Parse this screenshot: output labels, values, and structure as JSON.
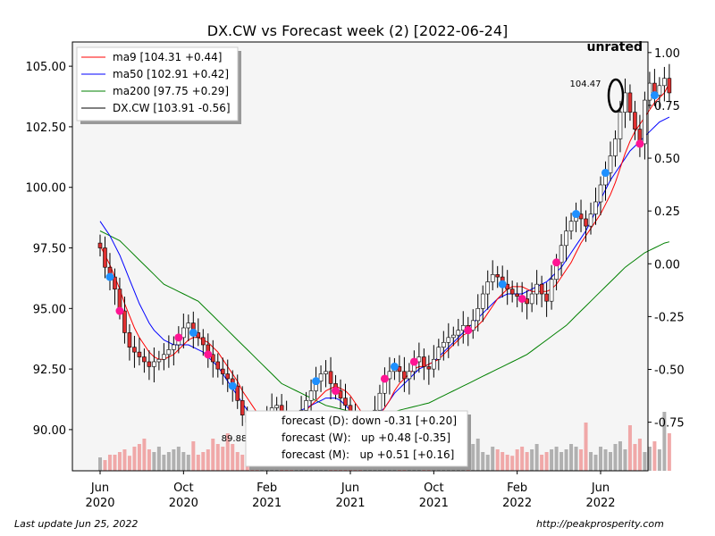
{
  "chart_data": {
    "type": "candlestick",
    "title": "DX.CW vs Forecast week (2) [2022-06-24]",
    "rating_label": "unrated",
    "ylim": [
      88.3,
      106.0
    ],
    "y2lim": [
      -0.98,
      1.05
    ],
    "yticks": [
      "90.00",
      "92.50",
      "95.00",
      "97.50",
      "100.00",
      "102.50",
      "105.00"
    ],
    "y2ticks": [
      "-0.75",
      "-0.50",
      "-0.25",
      "0.00",
      "0.25",
      "0.50",
      "0.75",
      "1.00"
    ],
    "xticks": [
      {
        "line1": "Jun",
        "line2": "2020",
        "week": 0
      },
      {
        "line1": "Oct",
        "line2": "2020",
        "week": 17
      },
      {
        "line1": "Feb",
        "line2": "2021",
        "week": 34
      },
      {
        "line1": "Jun",
        "line2": "2021",
        "week": 51
      },
      {
        "line1": "Oct",
        "line2": "2021",
        "week": 68
      },
      {
        "line1": "Feb",
        "line2": "2022",
        "week": 85
      },
      {
        "line1": "Jun",
        "line2": "2022",
        "week": 102
      }
    ],
    "legend": {
      "position": "upper-left",
      "entries": [
        {
          "label": "ma9 [104.31 +0.44]",
          "color": "#ff0000"
        },
        {
          "label": "ma50 [102.91 +0.42]",
          "color": "#0000ff"
        },
        {
          "label": "ma200 [97.75 +0.29]",
          "color": "#008000"
        },
        {
          "label": "DX.CW [103.91 -0.56]",
          "color": "#000000"
        }
      ]
    },
    "forecast_box": [
      "forecast (D): down -0.31 [+0.20]",
      "forecast (W):   up +0.48 [-0.35]",
      "forecast (M):   up +0.51 [+0.16]"
    ],
    "annotations": {
      "high_label": "104.47",
      "low_label": "89.88"
    },
    "closes": [
      97.5,
      96.7,
      96.3,
      95.8,
      94.9,
      94.0,
      93.4,
      93.2,
      93.0,
      92.8,
      92.6,
      92.8,
      92.9,
      93.1,
      93.3,
      93.5,
      93.8,
      94.2,
      94.4,
      94.0,
      93.8,
      93.5,
      93.1,
      92.8,
      92.5,
      92.3,
      92.1,
      91.8,
      91.2,
      90.6,
      90.3,
      90.1,
      90.0,
      90.2,
      90.5,
      90.9,
      91.0,
      90.6,
      90.2,
      89.9,
      90.3,
      90.8,
      91.2,
      91.6,
      92.0,
      92.3,
      92.4,
      91.9,
      91.6,
      91.3,
      91.0,
      90.6,
      90.2,
      90.0,
      90.1,
      90.3,
      90.8,
      91.5,
      92.1,
      92.4,
      92.6,
      92.4,
      92.1,
      92.4,
      92.8,
      93.0,
      92.6,
      92.5,
      92.9,
      93.4,
      93.6,
      93.8,
      93.9,
      94.1,
      94.3,
      94.1,
      94.5,
      95.0,
      95.6,
      96.1,
      96.4,
      96.3,
      96.0,
      95.8,
      95.6,
      95.5,
      95.4,
      95.2,
      95.6,
      96.0,
      95.6,
      95.3,
      96.2,
      96.9,
      97.6,
      98.2,
      98.6,
      98.9,
      98.7,
      98.4,
      98.9,
      99.4,
      100.1,
      100.6,
      101.3,
      102.0,
      103.1,
      103.9,
      103.1,
      102.4,
      101.8,
      103.6,
      104.3,
      103.8,
      104.2,
      104.5,
      103.9
    ],
    "ma9": [
      97.6,
      97.2,
      96.8,
      96.3,
      95.8,
      95.2,
      94.7,
      94.2,
      93.8,
      93.5,
      93.2,
      93.0,
      92.9,
      92.9,
      93.0,
      93.1,
      93.3,
      93.5,
      93.7,
      93.8,
      93.8,
      93.7,
      93.6,
      93.4,
      93.2,
      92.9,
      92.6,
      92.3,
      92.0,
      91.6,
      91.3,
      91.0,
      90.7,
      90.5,
      90.4,
      90.3,
      90.4,
      90.5,
      90.5,
      90.5,
      90.6,
      90.7,
      90.8,
      91.0,
      91.2,
      91.4,
      91.6,
      91.7,
      91.8,
      91.7,
      91.6,
      91.4,
      91.1,
      90.8,
      90.6,
      90.5,
      90.5,
      90.6,
      90.9,
      91.2,
      91.6,
      91.9,
      92.1,
      92.3,
      92.5,
      92.6,
      92.6,
      92.7,
      92.8,
      92.9,
      93.1,
      93.3,
      93.5,
      93.7,
      93.9,
      94.0,
      94.1,
      94.3,
      94.5,
      94.8,
      95.1,
      95.4,
      95.6,
      95.8,
      95.9,
      95.9,
      95.9,
      95.8,
      95.7,
      95.7,
      95.7,
      95.7,
      95.8,
      96.0,
      96.3,
      96.6,
      96.9,
      97.3,
      97.7,
      98.0,
      98.3,
      98.6,
      98.9,
      99.3,
      99.7,
      100.2,
      100.8,
      101.4,
      101.9,
      102.3,
      102.6,
      102.9,
      103.2,
      103.5,
      103.7,
      103.9,
      104.3
    ],
    "ma50": [
      98.6,
      98.3,
      98.0,
      97.6,
      97.2,
      96.7,
      96.2,
      95.7,
      95.2,
      94.8,
      94.4,
      94.1,
      93.9,
      93.7,
      93.6,
      93.5,
      93.5,
      93.5,
      93.5,
      93.4,
      93.3,
      93.2,
      93.0,
      92.8,
      92.6,
      92.3,
      92.0,
      91.7,
      91.4,
      91.1,
      90.8,
      90.5,
      90.3,
      90.2,
      90.2,
      90.3,
      90.4,
      90.5,
      90.6,
      90.6,
      90.7,
      90.8,
      90.9,
      91.0,
      91.1,
      91.2,
      91.3,
      91.3,
      91.3,
      91.2,
      91.0,
      90.8,
      90.6,
      90.4,
      90.4,
      90.4,
      90.5,
      90.7,
      90.9,
      91.2,
      91.5,
      91.7,
      91.9,
      92.1,
      92.3,
      92.5,
      92.6,
      92.7,
      92.8,
      93.0,
      93.2,
      93.4,
      93.6,
      93.8,
      94.0,
      94.2,
      94.4,
      94.6,
      94.8,
      95.0,
      95.2,
      95.4,
      95.5,
      95.6,
      95.6,
      95.6,
      95.6,
      95.7,
      95.8,
      95.9,
      96.0,
      96.1,
      96.3,
      96.5,
      96.7,
      97.0,
      97.3,
      97.6,
      97.9,
      98.2,
      98.6,
      99.0,
      99.5,
      99.9,
      100.3,
      100.6,
      100.9,
      101.2,
      101.5,
      101.7,
      101.9,
      102.1,
      102.3,
      102.5,
      102.7,
      102.8,
      102.9
    ],
    "ma200": [
      98.2,
      98.1,
      98.0,
      97.9,
      97.8,
      97.6,
      97.4,
      97.2,
      97.0,
      96.8,
      96.6,
      96.4,
      96.2,
      96.0,
      95.9,
      95.8,
      95.7,
      95.6,
      95.5,
      95.4,
      95.3,
      95.1,
      94.9,
      94.7,
      94.5,
      94.3,
      94.1,
      93.9,
      93.7,
      93.5,
      93.3,
      93.1,
      92.9,
      92.7,
      92.5,
      92.3,
      92.1,
      91.9,
      91.8,
      91.7,
      91.6,
      91.5,
      91.4,
      91.3,
      91.2,
      91.1,
      91.0,
      90.95,
      90.9,
      90.85,
      90.8,
      90.75,
      90.7,
      90.65,
      90.6,
      90.6,
      90.6,
      90.62,
      90.65,
      90.7,
      90.75,
      90.8,
      90.85,
      90.9,
      90.95,
      91.0,
      91.05,
      91.1,
      91.2,
      91.3,
      91.4,
      91.5,
      91.6,
      91.7,
      91.8,
      91.9,
      92.0,
      92.1,
      92.2,
      92.3,
      92.4,
      92.5,
      92.6,
      92.7,
      92.8,
      92.9,
      93.0,
      93.1,
      93.25,
      93.4,
      93.55,
      93.7,
      93.85,
      94.0,
      94.15,
      94.3,
      94.5,
      94.7,
      94.9,
      95.1,
      95.3,
      95.5,
      95.7,
      95.9,
      96.1,
      96.3,
      96.5,
      96.7,
      96.85,
      97.0,
      97.15,
      97.3,
      97.4,
      97.5,
      97.6,
      97.7,
      97.75
    ],
    "forecast_up_weeks": [
      2,
      19,
      27,
      44,
      60,
      82,
      97,
      103,
      113
    ],
    "forecast_down_weeks": [
      4,
      16,
      22,
      48,
      58,
      64,
      75,
      86,
      93,
      110
    ],
    "volume": [
      0.25,
      0.2,
      0.3,
      0.3,
      0.35,
      0.4,
      0.28,
      0.45,
      0.5,
      0.6,
      0.4,
      0.35,
      0.45,
      0.3,
      0.35,
      0.4,
      0.45,
      0.35,
      0.3,
      0.55,
      0.3,
      0.35,
      0.4,
      0.6,
      0.5,
      0.45,
      0.7,
      0.5,
      0.35,
      0.3,
      0.4,
      0.35,
      0.3,
      0.28,
      0.25,
      0.35,
      0.3,
      0.4,
      0.35,
      0.5,
      0.45,
      0.3,
      0.25,
      0.35,
      0.3,
      0.28,
      0.5,
      0.35,
      0.3,
      0.4,
      0.3,
      0.35,
      0.5,
      0.45,
      0.3,
      0.3,
      0.35,
      0.4,
      0.3,
      0.35,
      0.4,
      0.3,
      0.5,
      0.35,
      0.3,
      0.28,
      0.4,
      0.45,
      0.35,
      0.3,
      0.25,
      0.3,
      0.35,
      0.4,
      0.3,
      0.35,
      0.5,
      0.6,
      0.35,
      0.3,
      0.45,
      0.4,
      0.35,
      0.3,
      0.28,
      0.4,
      0.45,
      0.35,
      0.4,
      0.5,
      0.3,
      0.35,
      0.4,
      0.45,
      0.35,
      0.4,
      0.5,
      0.45,
      0.4,
      0.9,
      0.35,
      0.3,
      0.45,
      0.4,
      0.35,
      0.5,
      0.55,
      0.4,
      0.85,
      0.5,
      0.6,
      0.35,
      0.45,
      0.55,
      0.4,
      1.1,
      0.7
    ]
  },
  "footer": {
    "left": "Last update Jun 25, 2022",
    "right": "http://peakprosperity.com"
  }
}
